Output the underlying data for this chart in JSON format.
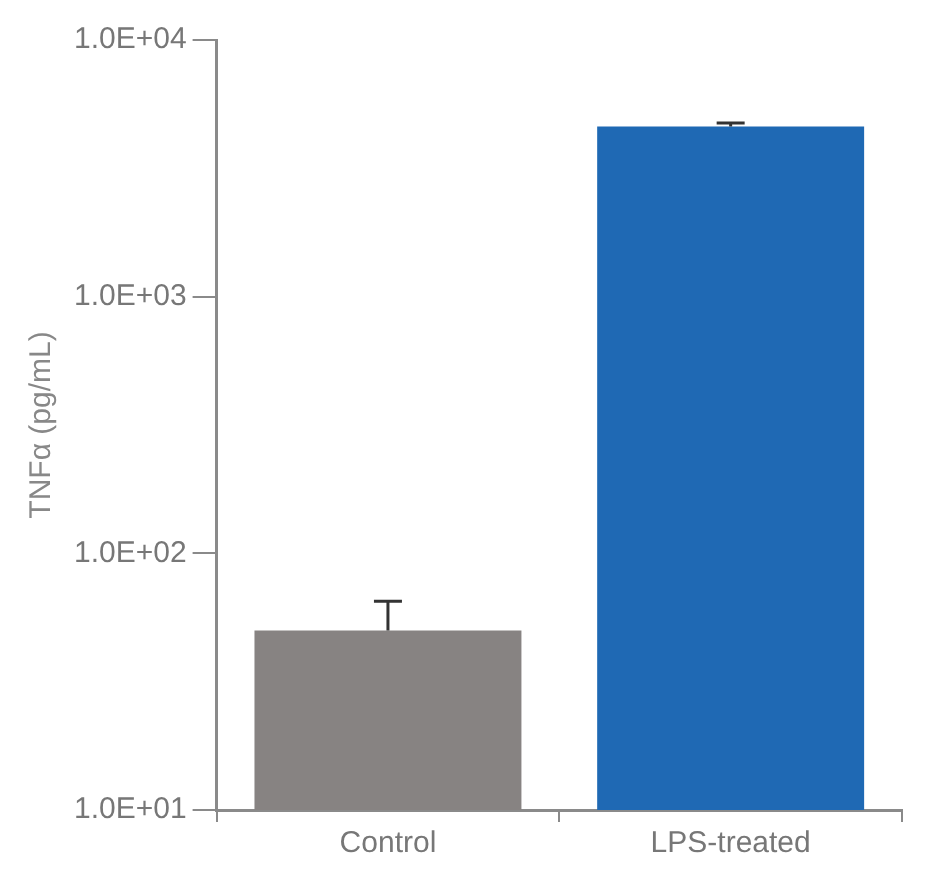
{
  "chart_data": {
    "type": "bar",
    "ylabel": "TNFα (pg/mL)",
    "categories": [
      "Control",
      "LPS-treated"
    ],
    "values": [
      50,
      4600
    ],
    "colors": [
      "#878382",
      "#1f69b4"
    ],
    "errors": [
      [
        50,
        65
      ],
      [
        4600,
        4750
      ]
    ],
    "log": "y",
    "ylim": [
      10,
      10000
    ],
    "yticks": [
      {
        "value": 10,
        "label": "1.0E+01"
      },
      {
        "value": 100,
        "label": "1.0E+02"
      },
      {
        "value": 1000,
        "label": "1.0E+03"
      },
      {
        "value": 10000,
        "label": "1.0E+04"
      }
    ],
    "grid": false,
    "legend": false
  }
}
